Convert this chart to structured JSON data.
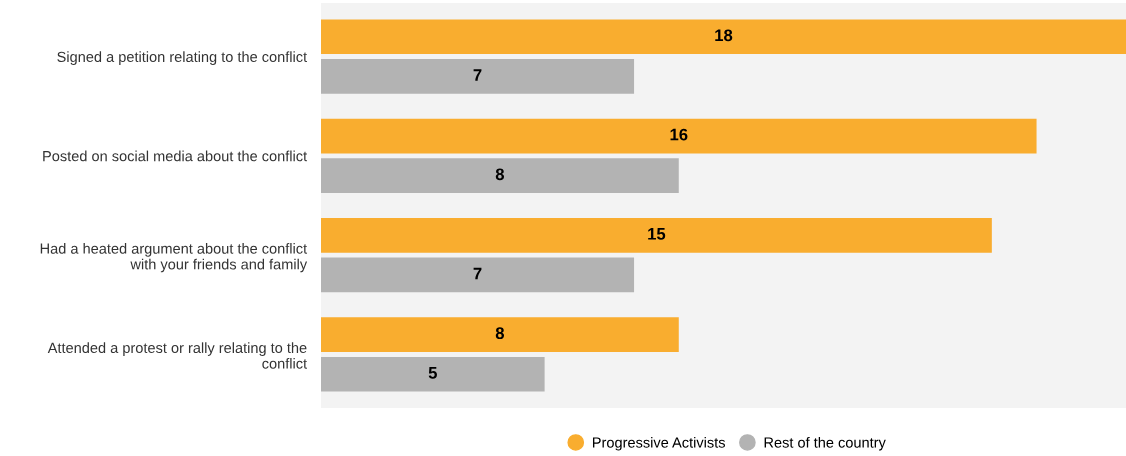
{
  "chart_data": {
    "type": "bar",
    "orientation": "horizontal",
    "categories": [
      "Signed a petition relating to the conflict",
      "Posted on social media about the conflict",
      "Had a heated argument about the conflict\nwith your friends and family",
      "Attended a protest or rally relating to the\nconflict"
    ],
    "series": [
      {
        "name": "Progressive Activists",
        "color": "#f9ad2f",
        "values": [
          18,
          16,
          15,
          8
        ]
      },
      {
        "name": "Rest of the country",
        "color": "#b3b3b3",
        "values": [
          7,
          8,
          7,
          5
        ]
      }
    ],
    "data_labels": true,
    "grid": false,
    "legend": "bottom"
  }
}
